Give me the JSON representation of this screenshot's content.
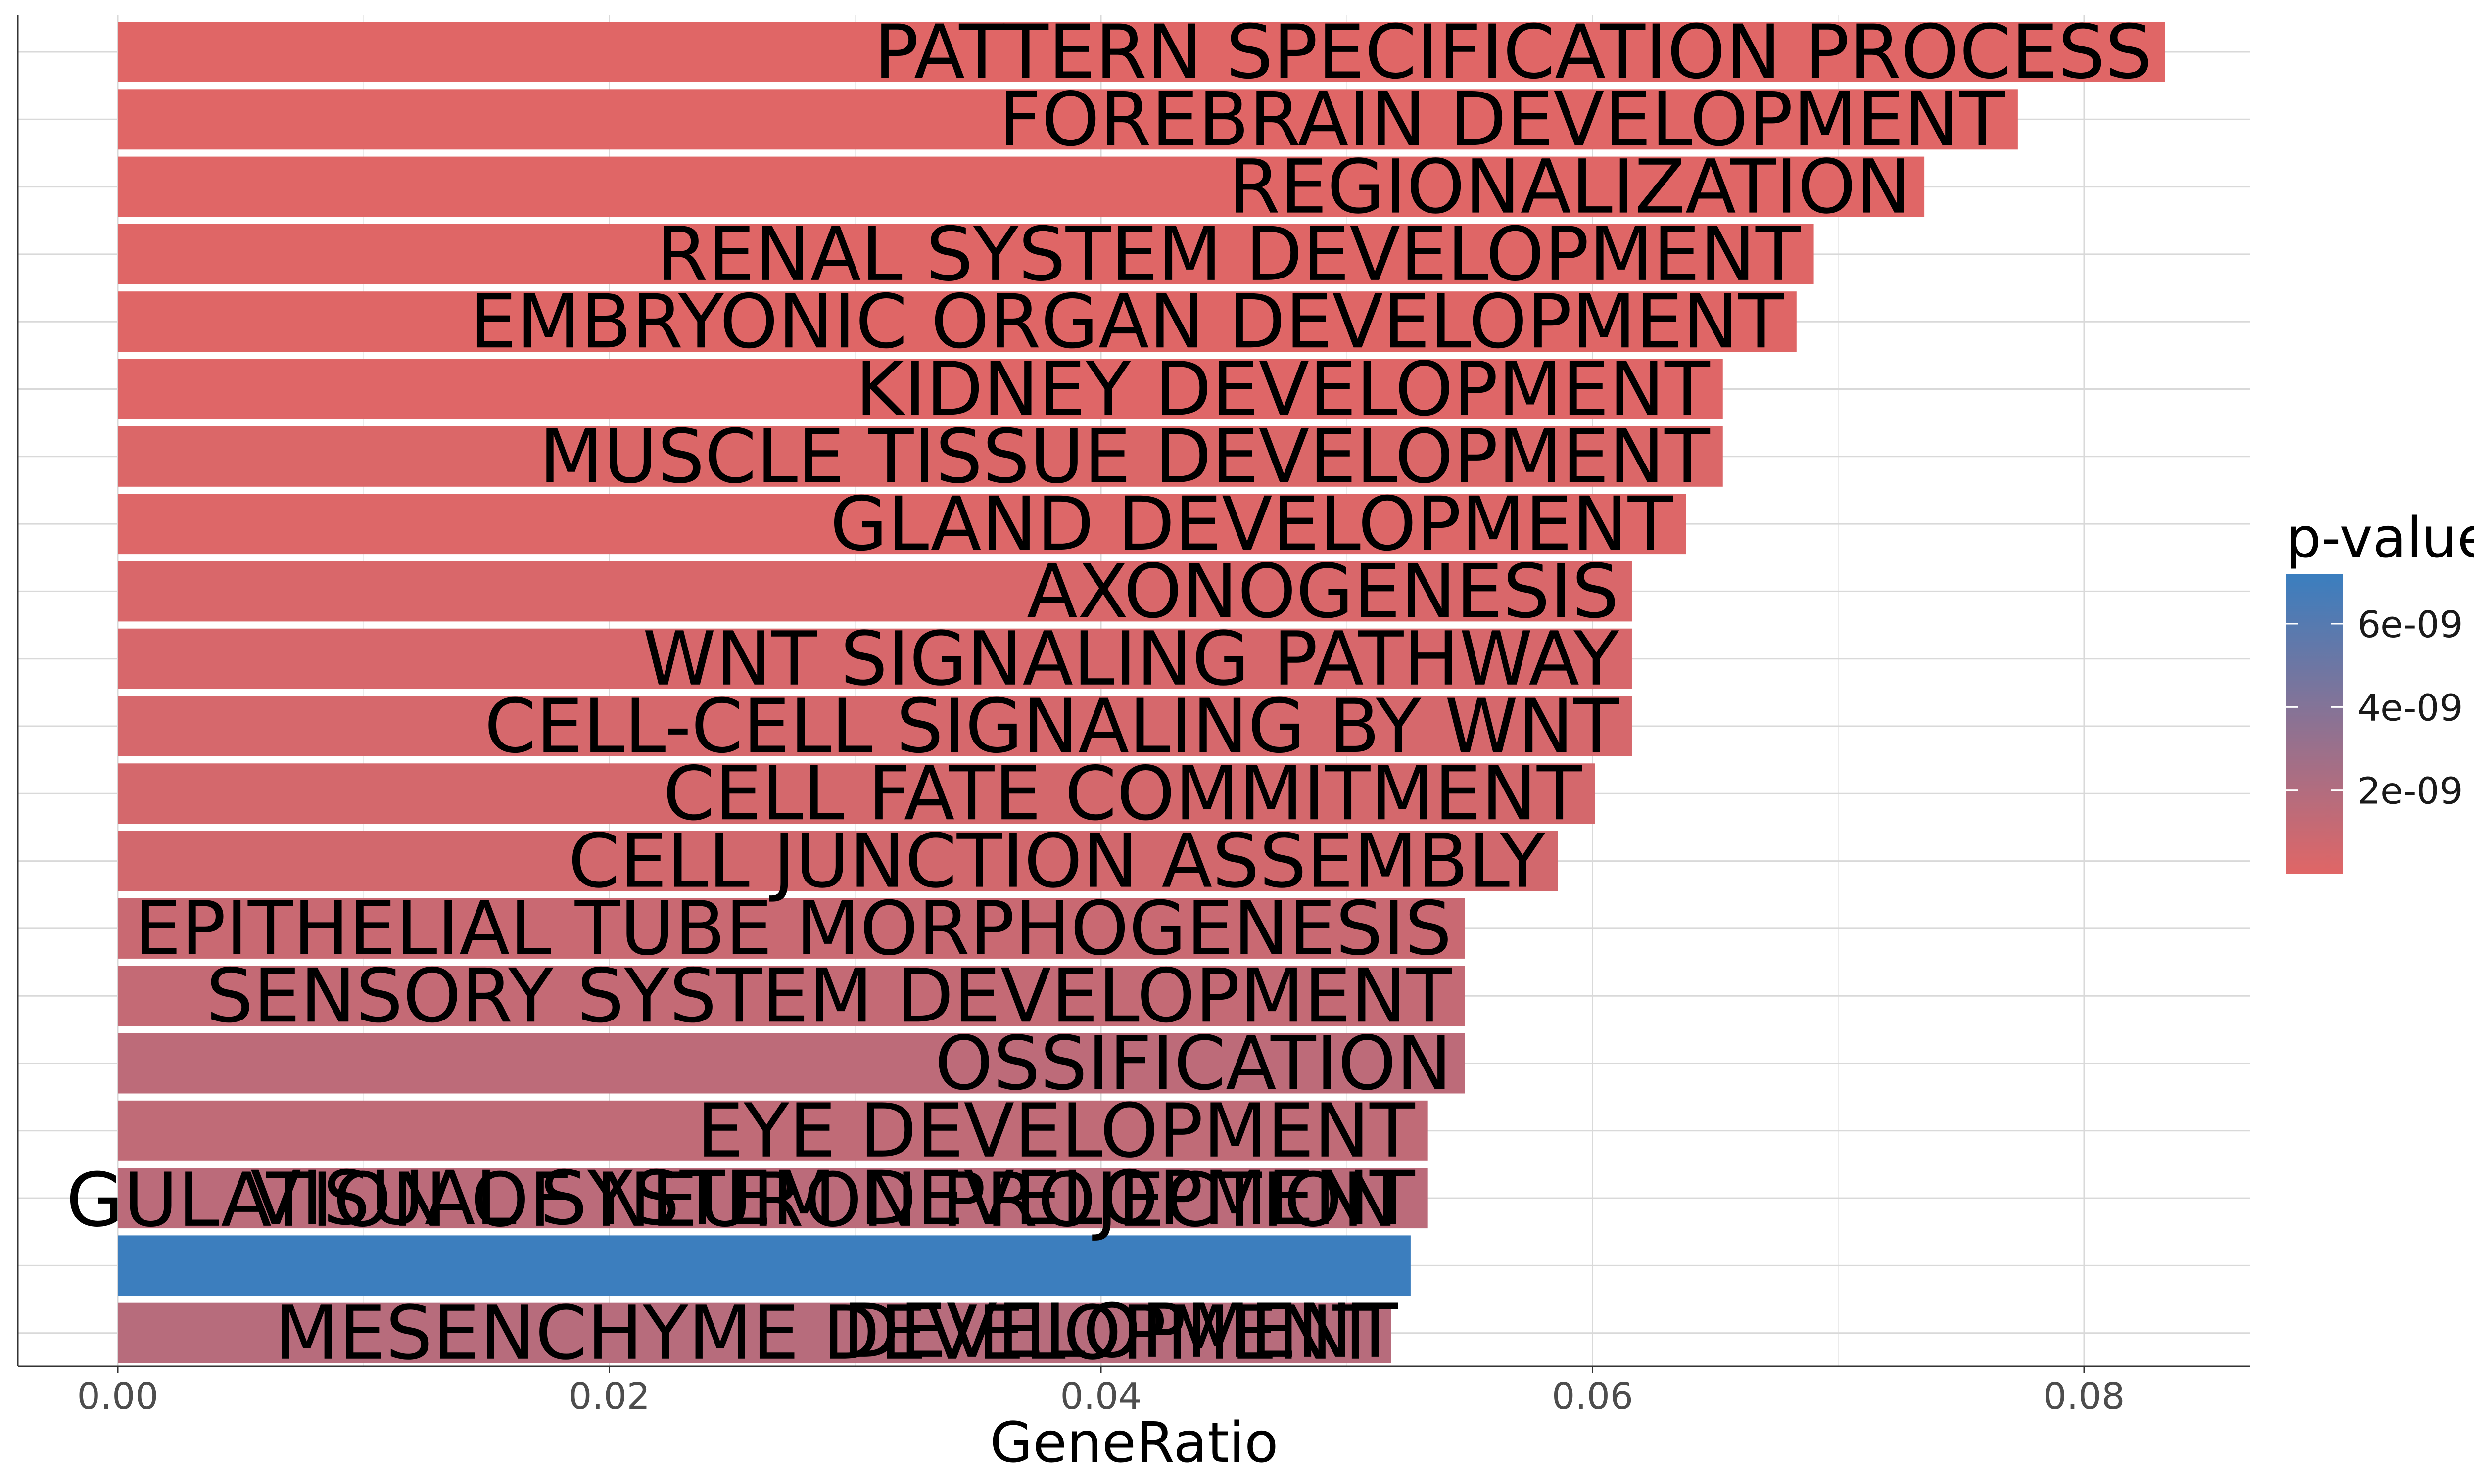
{
  "chart_data": {
    "type": "bar",
    "orientation": "horizontal",
    "xlabel": "GeneRatio",
    "ylabel": "",
    "xlim": [
      0,
      0.0875
    ],
    "x_ticks": [
      "0.00",
      "0.02",
      "0.04",
      "0.06",
      "0.08"
    ],
    "x_tick_values": [
      0,
      0.02,
      0.04,
      0.06,
      0.08
    ],
    "grid": true,
    "categories": [
      "PATTERN SPECIFICATION PROCESS",
      "FOREBRAIN DEVELOPMENT",
      "REGIONALIZATION",
      "RENAL SYSTEM DEVELOPMENT",
      "EMBRYONIC ORGAN DEVELOPMENT",
      "KIDNEY DEVELOPMENT",
      "MUSCLE TISSUE DEVELOPMENT",
      "GLAND DEVELOPMENT",
      "AXONOGENESIS",
      "WNT SIGNALING PATHWAY",
      "CELL-CELL SIGNALING BY WNT",
      "CELL FATE COMMITMENT",
      "CELL JUNCTION ASSEMBLY",
      "EPITHELIAL TUBE MORPHOGENESIS",
      "SENSORY SYSTEM DEVELOPMENT",
      "OSSIFICATION",
      "EYE DEVELOPMENT",
      "VISUAL SYSTEM DEVELOPMENT",
      "GULATION OF NEURON PROJECTION DEVELOPMENT",
      "MESENCHYME DEVELOPMENT"
    ],
    "label_lines": [
      [
        "PATTERN SPECIFICATION PROCESS"
      ],
      [
        "FOREBRAIN DEVELOPMENT"
      ],
      [
        "REGIONALIZATION"
      ],
      [
        "RENAL SYSTEM DEVELOPMENT"
      ],
      [
        "EMBRYONIC ORGAN DEVELOPMENT"
      ],
      [
        "KIDNEY DEVELOPMENT"
      ],
      [
        "MUSCLE TISSUE DEVELOPMENT"
      ],
      [
        "GLAND DEVELOPMENT"
      ],
      [
        "AXONOGENESIS"
      ],
      [
        "WNT SIGNALING PATHWAY"
      ],
      [
        "CELL-CELL SIGNALING BY WNT"
      ],
      [
        "CELL FATE COMMITMENT"
      ],
      [
        "CELL JUNCTION ASSEMBLY"
      ],
      [
        "EPITHELIAL TUBE MORPHOGENESIS"
      ],
      [
        "SENSORY SYSTEM DEVELOPMENT"
      ],
      [
        "OSSIFICATION"
      ],
      [
        "EYE DEVELOPMENT"
      ],
      [
        "VISUAL SYSTEM DEVELOPMENT"
      ],
      [
        "GULATION OF NEURON PROJECTION",
        "DEVELOPMENT"
      ],
      [
        "MESENCHYME DEVELOPMENT"
      ]
    ],
    "values": [
      0.0833,
      0.0773,
      0.0735,
      0.069,
      0.0683,
      0.0653,
      0.0653,
      0.0638,
      0.0616,
      0.0616,
      0.0616,
      0.0601,
      0.0586,
      0.0548,
      0.0548,
      0.0548,
      0.0533,
      0.0533,
      0.0526,
      0.0518
    ],
    "pvalues": [
      1e-11,
      2e-11,
      5e-12,
      3e-11,
      4e-11,
      6e-11,
      2e-10,
      1.5e-10,
      3e-10,
      4e-10,
      4.5e-10,
      5e-10,
      6e-10,
      1e-09,
      1.2e-09,
      1.5e-09,
      1.4e-09,
      1.6e-09,
      7.1e-09,
      1.8e-09
    ],
    "legend": {
      "title": "p-value",
      "placement": "right",
      "ticks": [
        "6e-09",
        "4e-09",
        "2e-09"
      ],
      "tick_values": [
        6e-09,
        4e-09,
        2e-09
      ],
      "range": [
        0,
        7.2e-09
      ],
      "low_color": "#e06666",
      "high_color": "#3a7ebf"
    }
  }
}
